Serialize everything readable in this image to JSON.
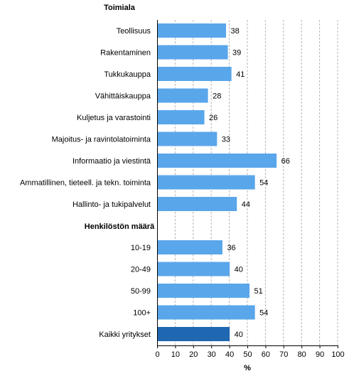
{
  "chart_data": {
    "type": "bar",
    "orientation": "horizontal",
    "xlabel": "%",
    "xlim": [
      0,
      100
    ],
    "xticks": [
      0,
      10,
      20,
      30,
      40,
      50,
      60,
      70,
      80,
      90,
      100
    ],
    "grid": true,
    "colors": {
      "bar": "#5aa6ea",
      "highlight": "#1f67b0"
    },
    "groups": [
      {
        "title": "Toimiala",
        "items": [
          {
            "label": "Teollisuus",
            "value": 38
          },
          {
            "label": "Rakentaminen",
            "value": 39
          },
          {
            "label": "Tukkukauppa",
            "value": 41
          },
          {
            "label": "Vähittäiskauppa",
            "value": 28
          },
          {
            "label": "Kuljetus ja varastointi",
            "value": 26
          },
          {
            "label": "Majoitus- ja ravintolatoiminta",
            "value": 33
          },
          {
            "label": "Informaatio ja viestintä",
            "value": 66
          },
          {
            "label": "Ammatillinen, tieteell. ja tekn. toiminta",
            "value": 54
          },
          {
            "label": "Hallinto- ja tukipalvelut",
            "value": 44
          }
        ]
      },
      {
        "title": "Henkilöstön määrä",
        "items": [
          {
            "label": "10-19",
            "value": 36
          },
          {
            "label": "20-49",
            "value": 40
          },
          {
            "label": "50-99",
            "value": 51
          },
          {
            "label": "100+",
            "value": 54
          }
        ]
      },
      {
        "title": "",
        "items": [
          {
            "label": "Kaikki yritykset",
            "value": 40,
            "highlight": true
          }
        ]
      }
    ]
  }
}
